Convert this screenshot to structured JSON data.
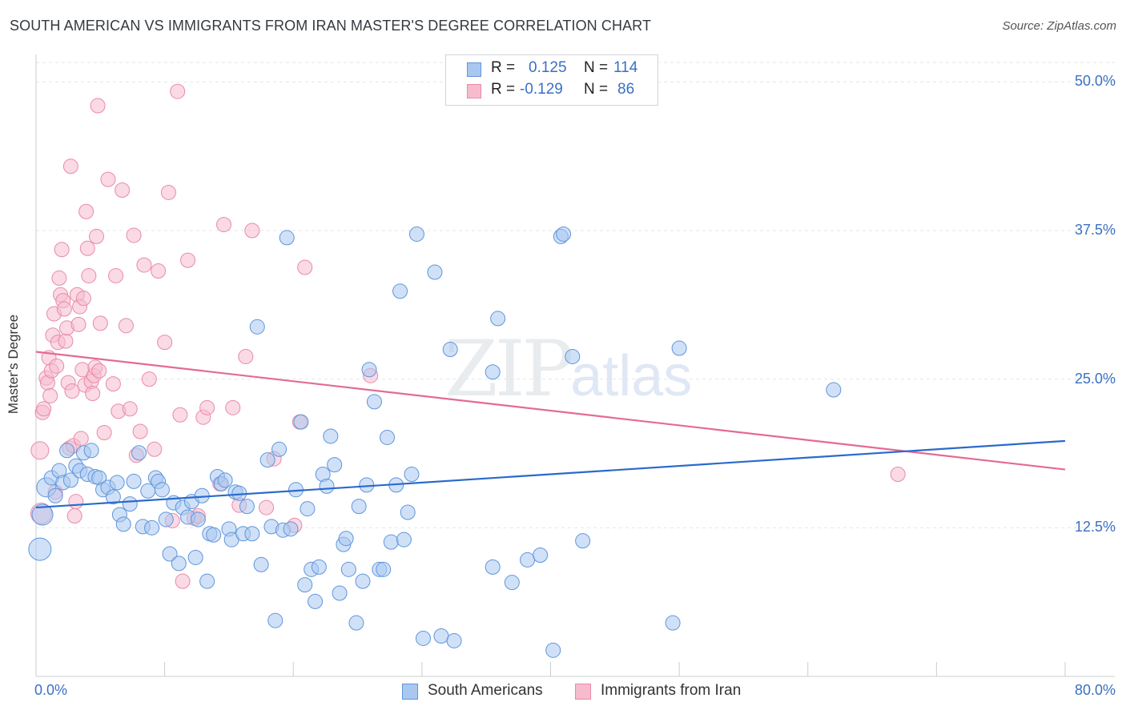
{
  "header": {
    "title": "SOUTH AMERICAN VS IMMIGRANTS FROM IRAN MASTER'S DEGREE CORRELATION CHART",
    "source": "Source: ZipAtlas.com"
  },
  "watermark": {
    "zip": "ZIP",
    "atlas": "atlas"
  },
  "stats": {
    "rows": [
      {
        "r_label": "R =",
        "r_value": "0.125",
        "n_label": "N =",
        "n_value": "114"
      },
      {
        "r_label": "R =",
        "r_value": "-0.129",
        "n_label": "N =",
        "n_value": "86"
      }
    ]
  },
  "colors": {
    "blue_fill": "#a9c8f0",
    "blue_stroke": "#5f95dc",
    "blue_line": "#2a6acb",
    "pink_fill": "#f6bccd",
    "pink_stroke": "#e98aa8",
    "pink_line": "#e46a94",
    "axis_text": "#3a70c4",
    "grid": "#e3e6ea"
  },
  "chart_data": {
    "type": "scatter",
    "title": "SOUTH AMERICAN VS IMMIGRANTS FROM IRAN MASTER'S DEGREE CORRELATION CHART",
    "xlabel": "",
    "ylabel": "Master's Degree",
    "xlim": [
      0,
      80
    ],
    "ylim": [
      0,
      50
    ],
    "x_tick_labels": [
      "0.0%",
      "80.0%"
    ],
    "y_ticks": [
      12.5,
      25.0,
      37.5,
      50.0
    ],
    "y_tick_labels": [
      "12.5%",
      "25.0%",
      "37.5%",
      "50.0%"
    ],
    "grid": "horizontal dashed",
    "legend": {
      "position": "bottom-center",
      "entries": [
        "South Americans",
        "Immigrants from Iran"
      ]
    },
    "series": [
      {
        "name": "South Americans",
        "color": "#a9c8f0",
        "r": 0.125,
        "n": 114,
        "trend": [
          [
            0,
            14.2
          ],
          [
            80,
            19.8
          ]
        ],
        "points": [
          [
            0.3,
            10.7
          ],
          [
            0.5,
            13.6
          ],
          [
            0.8,
            15.9
          ],
          [
            1.2,
            16.7
          ],
          [
            1.5,
            15.2
          ],
          [
            1.8,
            17.3
          ],
          [
            2.1,
            16.3
          ],
          [
            2.4,
            19.0
          ],
          [
            2.7,
            16.5
          ],
          [
            3.1,
            17.7
          ],
          [
            3.4,
            17.3
          ],
          [
            3.7,
            18.8
          ],
          [
            4.0,
            17.0
          ],
          [
            4.3,
            19.0
          ],
          [
            4.6,
            16.8
          ],
          [
            4.9,
            16.7
          ],
          [
            5.2,
            15.7
          ],
          [
            5.6,
            15.9
          ],
          [
            6.0,
            15.1
          ],
          [
            6.3,
            16.3
          ],
          [
            6.5,
            13.6
          ],
          [
            6.8,
            12.8
          ],
          [
            7.3,
            14.5
          ],
          [
            7.6,
            16.4
          ],
          [
            8.0,
            18.8
          ],
          [
            8.3,
            12.6
          ],
          [
            8.7,
            15.6
          ],
          [
            9.0,
            12.5
          ],
          [
            9.3,
            16.7
          ],
          [
            9.5,
            16.4
          ],
          [
            9.8,
            15.7
          ],
          [
            10.1,
            13.2
          ],
          [
            10.4,
            10.3
          ],
          [
            10.7,
            14.6
          ],
          [
            11.1,
            9.5
          ],
          [
            11.4,
            14.2
          ],
          [
            11.8,
            13.4
          ],
          [
            12.1,
            14.7
          ],
          [
            12.4,
            10.0
          ],
          [
            12.6,
            13.2
          ],
          [
            12.9,
            15.2
          ],
          [
            13.3,
            8.0
          ],
          [
            13.5,
            12.0
          ],
          [
            13.8,
            11.9
          ],
          [
            14.1,
            16.8
          ],
          [
            14.4,
            16.2
          ],
          [
            14.7,
            16.5
          ],
          [
            15.0,
            12.4
          ],
          [
            15.2,
            11.5
          ],
          [
            15.5,
            15.5
          ],
          [
            15.8,
            15.4
          ],
          [
            16.1,
            12.0
          ],
          [
            16.4,
            14.3
          ],
          [
            16.8,
            12.0
          ],
          [
            17.2,
            29.4
          ],
          [
            17.5,
            9.4
          ],
          [
            18.0,
            18.2
          ],
          [
            18.3,
            12.6
          ],
          [
            18.6,
            4.7
          ],
          [
            18.9,
            19.1
          ],
          [
            19.2,
            12.3
          ],
          [
            19.5,
            36.9
          ],
          [
            19.8,
            12.4
          ],
          [
            20.2,
            15.7
          ],
          [
            20.6,
            21.4
          ],
          [
            20.9,
            7.7
          ],
          [
            21.1,
            14.1
          ],
          [
            21.4,
            9.0
          ],
          [
            21.7,
            6.3
          ],
          [
            22.0,
            9.2
          ],
          [
            22.3,
            17.0
          ],
          [
            22.6,
            16.0
          ],
          [
            22.9,
            20.2
          ],
          [
            23.2,
            17.8
          ],
          [
            23.6,
            7.0
          ],
          [
            23.9,
            11.1
          ],
          [
            24.1,
            11.6
          ],
          [
            24.3,
            9.0
          ],
          [
            24.9,
            4.5
          ],
          [
            25.1,
            14.3
          ],
          [
            25.4,
            8.0
          ],
          [
            25.7,
            16.1
          ],
          [
            25.9,
            25.8
          ],
          [
            26.3,
            23.1
          ],
          [
            26.7,
            9.0
          ],
          [
            27.0,
            9.0
          ],
          [
            27.3,
            20.1
          ],
          [
            27.6,
            11.3
          ],
          [
            28.0,
            16.1
          ],
          [
            28.3,
            32.4
          ],
          [
            28.6,
            11.5
          ],
          [
            28.9,
            13.8
          ],
          [
            29.2,
            17.0
          ],
          [
            29.6,
            37.2
          ],
          [
            30.1,
            3.2
          ],
          [
            31.0,
            34.0
          ],
          [
            31.5,
            3.4
          ],
          [
            32.2,
            27.5
          ],
          [
            32.5,
            3.0
          ],
          [
            35.5,
            25.6
          ],
          [
            35.5,
            9.2
          ],
          [
            35.9,
            30.1
          ],
          [
            37.0,
            7.9
          ],
          [
            38.2,
            9.8
          ],
          [
            39.2,
            10.2
          ],
          [
            40.2,
            2.2
          ],
          [
            40.8,
            37.0
          ],
          [
            41.0,
            37.2
          ],
          [
            41.7,
            26.9
          ],
          [
            42.5,
            11.4
          ],
          [
            49.5,
            4.5
          ],
          [
            50.0,
            27.6
          ],
          [
            62.0,
            24.1
          ]
        ]
      },
      {
        "name": "Immigrants from Iran",
        "color": "#f6bccd",
        "r": -0.129,
        "n": 86,
        "trend": [
          [
            0,
            27.3
          ],
          [
            80,
            17.4
          ]
        ],
        "points": [
          [
            0.3,
            19.0
          ],
          [
            0.4,
            13.7
          ],
          [
            0.5,
            22.2
          ],
          [
            0.6,
            22.5
          ],
          [
            0.8,
            25.1
          ],
          [
            0.9,
            24.7
          ],
          [
            1.0,
            26.8
          ],
          [
            1.1,
            23.6
          ],
          [
            1.2,
            25.7
          ],
          [
            1.3,
            28.7
          ],
          [
            1.4,
            30.5
          ],
          [
            1.5,
            15.5
          ],
          [
            1.6,
            26.1
          ],
          [
            1.7,
            28.1
          ],
          [
            1.8,
            33.5
          ],
          [
            1.9,
            32.1
          ],
          [
            2.0,
            35.9
          ],
          [
            2.1,
            31.6
          ],
          [
            2.2,
            30.9
          ],
          [
            2.3,
            28.2
          ],
          [
            2.4,
            29.3
          ],
          [
            2.5,
            24.7
          ],
          [
            2.6,
            19.2
          ],
          [
            2.7,
            42.9
          ],
          [
            2.8,
            24.0
          ],
          [
            2.9,
            19.4
          ],
          [
            3.0,
            13.5
          ],
          [
            3.1,
            14.7
          ],
          [
            3.2,
            32.1
          ],
          [
            3.3,
            29.6
          ],
          [
            3.4,
            31.1
          ],
          [
            3.5,
            20.0
          ],
          [
            3.6,
            25.8
          ],
          [
            3.7,
            31.8
          ],
          [
            3.8,
            24.5
          ],
          [
            3.9,
            39.1
          ],
          [
            4.0,
            36.0
          ],
          [
            4.1,
            33.7
          ],
          [
            4.3,
            24.8
          ],
          [
            4.4,
            23.8
          ],
          [
            4.5,
            25.3
          ],
          [
            4.6,
            26.0
          ],
          [
            4.7,
            37.0
          ],
          [
            4.8,
            48.0
          ],
          [
            4.9,
            25.7
          ],
          [
            5.0,
            29.7
          ],
          [
            5.3,
            20.5
          ],
          [
            5.6,
            41.8
          ],
          [
            6.0,
            24.6
          ],
          [
            6.2,
            33.7
          ],
          [
            6.4,
            22.3
          ],
          [
            6.7,
            40.9
          ],
          [
            7.0,
            29.5
          ],
          [
            7.3,
            22.5
          ],
          [
            7.6,
            37.1
          ],
          [
            7.8,
            18.6
          ],
          [
            8.1,
            20.6
          ],
          [
            8.4,
            34.6
          ],
          [
            8.8,
            25.0
          ],
          [
            9.2,
            19.1
          ],
          [
            9.5,
            34.1
          ],
          [
            10.0,
            28.1
          ],
          [
            10.3,
            40.7
          ],
          [
            10.6,
            13.1
          ],
          [
            11.0,
            49.2
          ],
          [
            11.2,
            22.0
          ],
          [
            11.4,
            8.0
          ],
          [
            11.8,
            35.0
          ],
          [
            12.3,
            13.3
          ],
          [
            12.6,
            13.5
          ],
          [
            13.0,
            21.8
          ],
          [
            13.3,
            22.6
          ],
          [
            14.3,
            16.2
          ],
          [
            14.6,
            38.0
          ],
          [
            15.3,
            22.6
          ],
          [
            15.8,
            14.4
          ],
          [
            16.3,
            26.9
          ],
          [
            16.8,
            37.5
          ],
          [
            17.9,
            14.2
          ],
          [
            18.5,
            18.3
          ],
          [
            20.1,
            12.7
          ],
          [
            20.5,
            21.4
          ],
          [
            20.9,
            34.4
          ],
          [
            26.0,
            25.3
          ],
          [
            67.0,
            17.0
          ]
        ]
      }
    ]
  }
}
